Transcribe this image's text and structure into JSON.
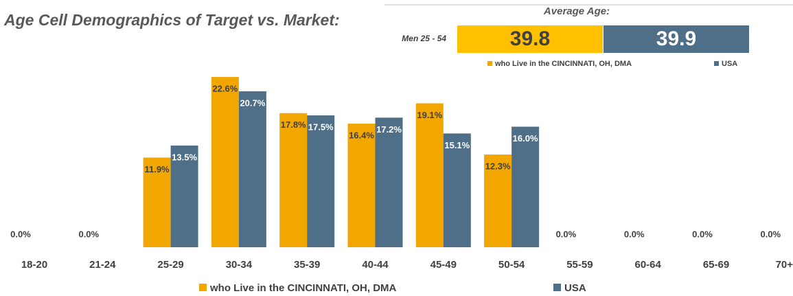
{
  "chart_data": {
    "type": "bar",
    "title": "Age Cell Demographics of Target vs. Market:",
    "average_age": {
      "label": "Average Age:",
      "group": "Men 25 - 54",
      "values": [
        39.8,
        39.9
      ],
      "colors": [
        "#ffc000",
        "#4e6f87"
      ]
    },
    "categories": [
      "18-20",
      "21-24",
      "25-29",
      "30-34",
      "35-39",
      "40-44",
      "45-49",
      "50-54",
      "55-59",
      "60-64",
      "65-69",
      "70+"
    ],
    "series": [
      {
        "name": "who Live in the CINCINNATI, OH, DMA",
        "color": "#f2a600",
        "values": [
          0,
          0,
          11.9,
          22.6,
          17.8,
          16.4,
          19.1,
          12.3,
          0,
          0,
          0,
          0
        ],
        "value_labels": [
          "0.0%",
          "0.0%",
          "11.9%",
          "22.6%",
          "17.8%",
          "16.4%",
          "19.1%",
          "12.3%",
          "0.0%",
          "0.0%",
          "0.0%",
          "0.0%"
        ]
      },
      {
        "name": "USA",
        "color": "#4e6f87",
        "values": [
          null,
          null,
          13.5,
          20.7,
          17.5,
          17.2,
          15.1,
          16.0,
          null,
          null,
          null,
          null
        ],
        "value_labels": [
          null,
          null,
          "13.5%",
          "20.7%",
          "17.5%",
          "17.2%",
          "15.1%",
          "16.0%",
          null,
          null,
          null,
          null
        ]
      }
    ]
  }
}
